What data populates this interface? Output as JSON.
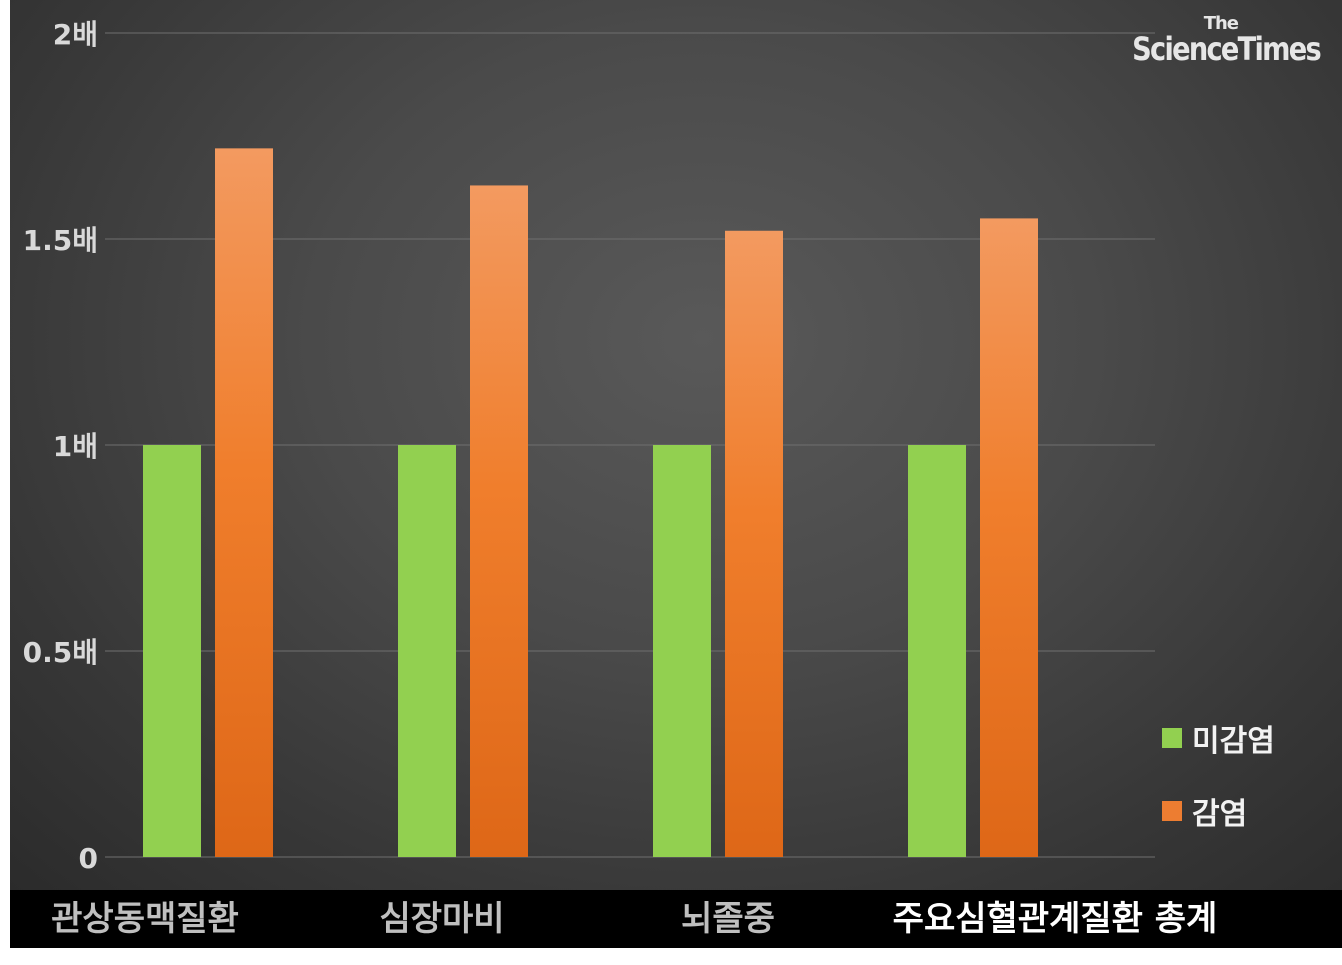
{
  "chart_data": {
    "type": "bar",
    "categories": [
      "관상동맥질환",
      "심장마비",
      "뇌졸중",
      "주요심혈관계질환 총계"
    ],
    "series": [
      {
        "name": "미감염",
        "values": [
          1,
          1,
          1,
          1
        ],
        "color": "#92d050"
      },
      {
        "name": "감염",
        "values": [
          1.72,
          1.63,
          1.52,
          1.55
        ],
        "color": "#ed7d31"
      }
    ],
    "ytick_labels": [
      "0",
      "0.5배",
      "1배",
      "1.5배",
      "2배"
    ],
    "ytick_values": [
      0,
      0.5,
      1,
      1.5,
      2
    ],
    "ylim": [
      0,
      2
    ],
    "grid": true,
    "legend_position": "right",
    "category_label_colors": [
      "#bfbfbf",
      "#bfbfbf",
      "#bfbfbf",
      "#ffffff"
    ]
  },
  "logo": {
    "line1": "The",
    "line2": "ScienceTimes"
  }
}
